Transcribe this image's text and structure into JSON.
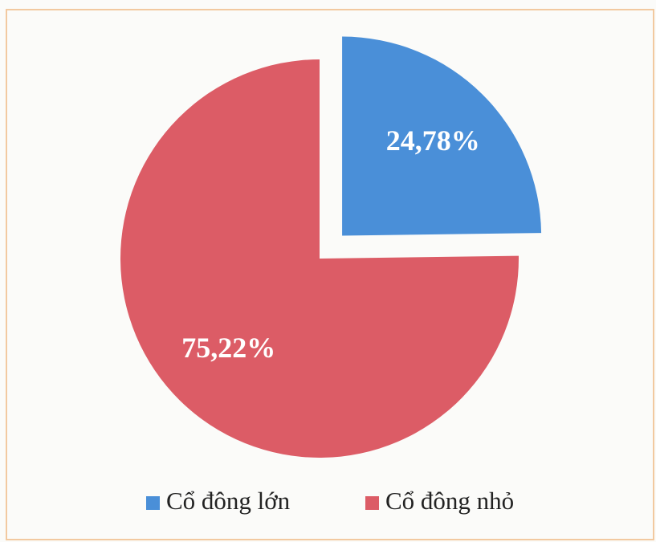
{
  "chart_data": {
    "type": "pie",
    "categories": [
      "Cổ đông lớn",
      "Cổ đông nhỏ"
    ],
    "values": [
      24.78,
      75.22
    ],
    "value_labels": [
      "24,78%",
      "75,22%"
    ],
    "colors": [
      "#4a8fd8",
      "#dc5c66"
    ],
    "explode": [
      true,
      false
    ],
    "legend": "bottom"
  }
}
